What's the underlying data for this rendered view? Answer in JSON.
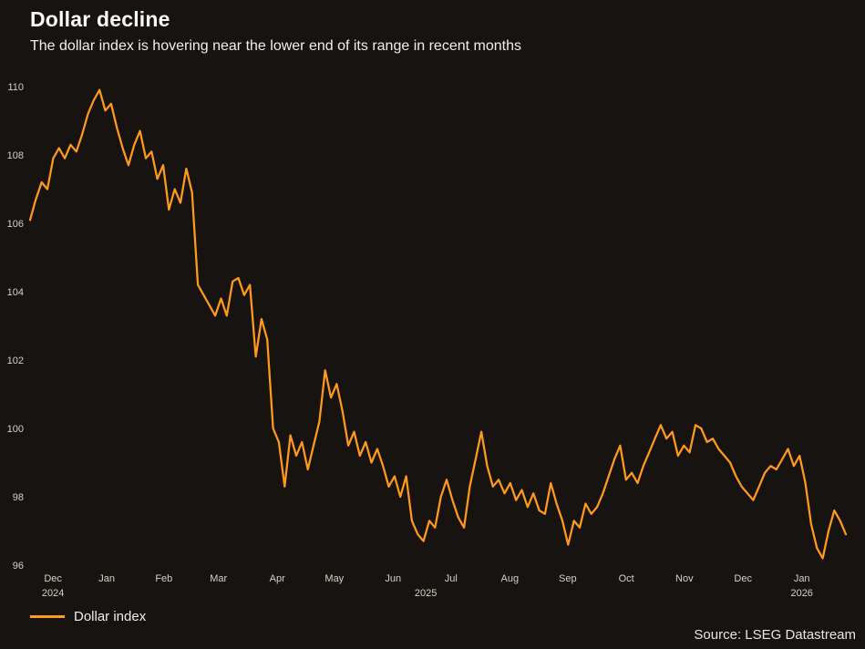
{
  "header": {
    "title": "Dollar decline",
    "subtitle": "The dollar index is hovering near the lower end of its range in recent months"
  },
  "legend": {
    "label": "Dollar index"
  },
  "footer": {
    "source": "Source: LSEG Datastream"
  },
  "colors": {
    "background": "#171310",
    "line": "#ff9a1b",
    "title": "#ffffff",
    "subtitle": "#f2efe9",
    "axis_text": "#d7d1c6",
    "source_text": "#e9e5df"
  },
  "chart_data": {
    "type": "line",
    "title": "Dollar decline",
    "subtitle": "The dollar index is hovering near the lower end of its range in recent months",
    "grid": false,
    "legend_position": "bottom-left",
    "source": "Source: LSEG Datastream",
    "y_axis": {
      "min": 96,
      "max": 110,
      "ticks": [
        96,
        98,
        100,
        102,
        104,
        106,
        108,
        110
      ]
    },
    "x_axis": {
      "ticks": [
        {
          "label": "Dec",
          "pos": 0.028
        },
        {
          "label": "Jan",
          "pos": 0.094
        },
        {
          "label": "Feb",
          "pos": 0.164
        },
        {
          "label": "Mar",
          "pos": 0.231
        },
        {
          "label": "Apr",
          "pos": 0.303
        },
        {
          "label": "May",
          "pos": 0.373
        },
        {
          "label": "Jun",
          "pos": 0.445
        },
        {
          "label": "Jul",
          "pos": 0.516
        },
        {
          "label": "Aug",
          "pos": 0.588
        },
        {
          "label": "Sep",
          "pos": 0.659
        },
        {
          "label": "Oct",
          "pos": 0.731
        },
        {
          "label": "Nov",
          "pos": 0.802
        },
        {
          "label": "Dec",
          "pos": 0.874
        },
        {
          "label": "Jan",
          "pos": 0.946
        }
      ],
      "year_labels": [
        {
          "label": "2024",
          "pos": 0.028
        },
        {
          "label": "2025",
          "pos": 0.485
        },
        {
          "label": "2026",
          "pos": 0.946
        }
      ]
    },
    "series": [
      {
        "name": "Dollar index",
        "color": "#ff9a1b",
        "values": [
          106.1,
          106.7,
          107.2,
          107.0,
          107.9,
          108.2,
          107.9,
          108.3,
          108.1,
          108.6,
          109.2,
          109.6,
          109.9,
          109.3,
          109.5,
          108.8,
          108.2,
          107.7,
          108.3,
          108.7,
          107.9,
          108.1,
          107.3,
          107.7,
          106.4,
          107.0,
          106.6,
          107.6,
          106.9,
          104.2,
          103.9,
          103.6,
          103.3,
          103.8,
          103.3,
          104.3,
          104.4,
          103.9,
          104.2,
          102.1,
          103.2,
          102.6,
          100.0,
          99.6,
          98.3,
          99.8,
          99.2,
          99.6,
          98.8,
          99.5,
          100.2,
          101.7,
          100.9,
          101.3,
          100.5,
          99.5,
          99.9,
          99.2,
          99.6,
          99.0,
          99.4,
          98.9,
          98.3,
          98.6,
          98.0,
          98.6,
          97.3,
          96.9,
          96.7,
          97.3,
          97.1,
          98.0,
          98.5,
          97.9,
          97.4,
          97.1,
          98.3,
          99.1,
          99.9,
          98.9,
          98.3,
          98.5,
          98.1,
          98.4,
          97.9,
          98.2,
          97.7,
          98.1,
          97.6,
          97.5,
          98.4,
          97.8,
          97.3,
          96.6,
          97.3,
          97.1,
          97.8,
          97.5,
          97.7,
          98.1,
          98.6,
          99.1,
          99.5,
          98.5,
          98.7,
          98.4,
          98.9,
          99.3,
          99.7,
          100.1,
          99.7,
          99.9,
          99.2,
          99.5,
          99.3,
          100.1,
          100.0,
          99.6,
          99.7,
          99.4,
          99.2,
          99.0,
          98.6,
          98.3,
          98.1,
          97.9,
          98.3,
          98.7,
          98.9,
          98.8,
          99.1,
          99.4,
          98.9,
          99.2,
          98.4,
          97.2,
          96.5,
          96.2,
          97.0,
          97.6,
          97.3,
          96.9
        ]
      }
    ]
  }
}
